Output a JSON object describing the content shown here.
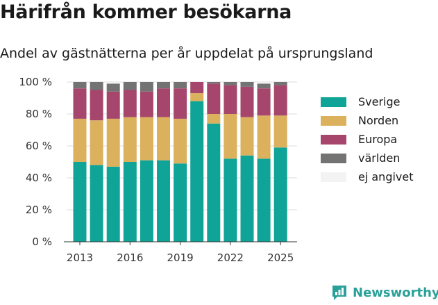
{
  "title": "Härifrån kommer besökarna",
  "subtitle": "Andel av gästnätterna per år uppdelat på ursprungsland",
  "brand": {
    "name": "Newsworthy",
    "icon": "newsworthy-logo-icon",
    "color": "#2aa198"
  },
  "chart_data": {
    "type": "bar",
    "stacked": true,
    "categories": [
      "2013",
      "2014",
      "2015",
      "2016",
      "2017",
      "2018",
      "2019",
      "2020",
      "2021",
      "2022",
      "2023",
      "2024",
      "2025"
    ],
    "x_tick_labels": [
      "2013",
      "2016",
      "2019",
      "2022",
      "2025"
    ],
    "y_tick_labels": [
      "0 %",
      "20 %",
      "40 %",
      "60 %",
      "80 %",
      "100 %"
    ],
    "ylim": [
      0,
      100
    ],
    "grid": true,
    "legend_position": "right",
    "xlabel": "",
    "ylabel": "",
    "series": [
      {
        "name": "Sverige",
        "color": "#0fa497",
        "values": [
          50,
          48,
          47,
          50,
          51,
          51,
          49,
          88,
          74,
          52,
          54,
          52,
          59
        ]
      },
      {
        "name": "Norden",
        "color": "#dbb15e",
        "values": [
          27,
          28,
          30,
          28,
          27,
          27,
          28,
          5,
          6,
          28,
          24,
          27,
          20
        ]
      },
      {
        "name": "Europa",
        "color": "#a6466c",
        "values": [
          19,
          19,
          17,
          17,
          16,
          18,
          19,
          7,
          19,
          18,
          19,
          17,
          19
        ]
      },
      {
        "name": "världen",
        "color": "#737373",
        "values": [
          4,
          5,
          5,
          5,
          6,
          4,
          4,
          0,
          1,
          2,
          3,
          3,
          2
        ]
      },
      {
        "name": "ej angivet",
        "color": "#f3f3f3",
        "values": [
          0,
          0,
          1,
          0,
          0,
          0,
          0,
          0,
          0,
          0,
          0,
          1,
          0
        ]
      }
    ]
  }
}
